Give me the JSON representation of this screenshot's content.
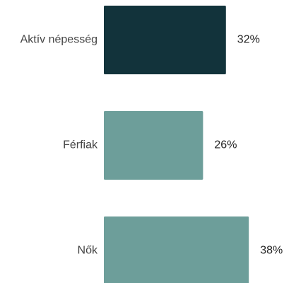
{
  "chart_data": {
    "type": "bar",
    "orientation": "horizontal",
    "categories": [
      "Aktív népesség",
      "Férfiak",
      "Nők"
    ],
    "values": [
      32,
      26,
      38
    ],
    "value_labels": [
      "32%",
      "26%",
      "38%"
    ],
    "colors": [
      "#12333b",
      "#6d9e9a",
      "#6d9e9a"
    ]
  }
}
